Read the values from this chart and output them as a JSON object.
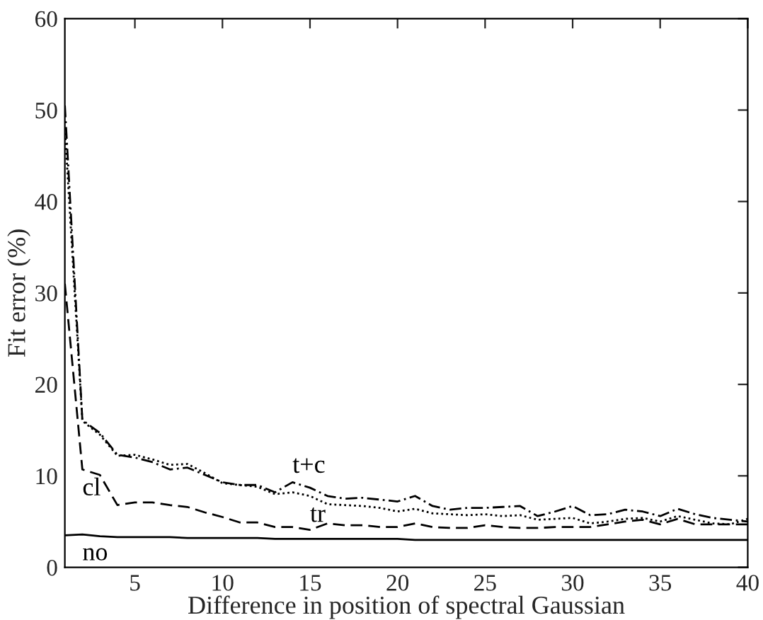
{
  "chart_data": {
    "type": "line",
    "xlabel": "Difference in position of spectral Gaussian",
    "ylabel": "Fit error (%)",
    "x": [
      1,
      2,
      3,
      4,
      5,
      6,
      7,
      8,
      9,
      10,
      11,
      12,
      13,
      14,
      15,
      16,
      17,
      18,
      19,
      20,
      21,
      22,
      23,
      24,
      25,
      26,
      27,
      28,
      29,
      30,
      31,
      32,
      33,
      34,
      35,
      36,
      37,
      38,
      39,
      40
    ],
    "series": [
      {
        "name": "t+c",
        "color": "#000000",
        "line_style": "dashdot",
        "values": [
          50.5,
          16.1,
          14.7,
          12.3,
          12.0,
          11.5,
          10.7,
          10.9,
          10.1,
          9.3,
          9.0,
          9.0,
          8.2,
          9.3,
          8.7,
          7.8,
          7.5,
          7.6,
          7.4,
          7.2,
          7.8,
          6.7,
          6.3,
          6.5,
          6.5,
          6.6,
          6.7,
          5.6,
          6.1,
          6.7,
          5.7,
          5.8,
          6.3,
          6.1,
          5.6,
          6.4,
          5.8,
          5.4,
          5.2,
          5.0
        ]
      },
      {
        "name": "tr",
        "color": "#000000",
        "line_style": "dotted",
        "values": [
          48,
          16.0,
          14.5,
          12.2,
          12.3,
          11.8,
          11.2,
          11.3,
          10.3,
          9.2,
          9.0,
          8.8,
          8.0,
          8.2,
          7.8,
          6.9,
          6.8,
          6.7,
          6.5,
          6.1,
          6.4,
          5.9,
          5.8,
          5.7,
          5.8,
          5.6,
          5.7,
          5.2,
          5.3,
          5.4,
          4.8,
          5.0,
          5.3,
          5.4,
          5.0,
          5.6,
          5.2,
          4.8,
          4.7,
          5.3
        ]
      },
      {
        "name": "cl",
        "color": "#000000",
        "line_style": "dashed",
        "values": [
          31,
          10.7,
          10.1,
          6.8,
          7.1,
          7.1,
          6.8,
          6.6,
          6.0,
          5.5,
          4.9,
          4.9,
          4.4,
          4.4,
          4.1,
          4.8,
          4.6,
          4.6,
          4.4,
          4.4,
          4.8,
          4.4,
          4.3,
          4.3,
          4.6,
          4.4,
          4.3,
          4.3,
          4.4,
          4.4,
          4.4,
          4.7,
          5.0,
          5.2,
          4.7,
          5.3,
          4.7,
          4.7,
          4.7,
          4.7
        ]
      },
      {
        "name": "no",
        "color": "#000000",
        "line_style": "solid",
        "values": [
          3.5,
          3.6,
          3.4,
          3.3,
          3.3,
          3.3,
          3.3,
          3.2,
          3.2,
          3.2,
          3.2,
          3.2,
          3.1,
          3.1,
          3.1,
          3.1,
          3.1,
          3.1,
          3.1,
          3.1,
          3.0,
          3.0,
          3.0,
          3.0,
          3.0,
          3.0,
          3.0,
          3.0,
          3.0,
          3.0,
          3.0,
          3.0,
          3.0,
          3.0,
          3.0,
          3.0,
          3.0,
          3.0,
          3.0,
          3.0
        ]
      }
    ],
    "xlim": [
      1,
      40
    ],
    "ylim": [
      0,
      60
    ],
    "xticks": [
      5,
      10,
      15,
      20,
      25,
      30,
      35,
      40
    ],
    "yticks": [
      0,
      10,
      20,
      30,
      40,
      50,
      60
    ],
    "grid": false,
    "legend": false
  }
}
